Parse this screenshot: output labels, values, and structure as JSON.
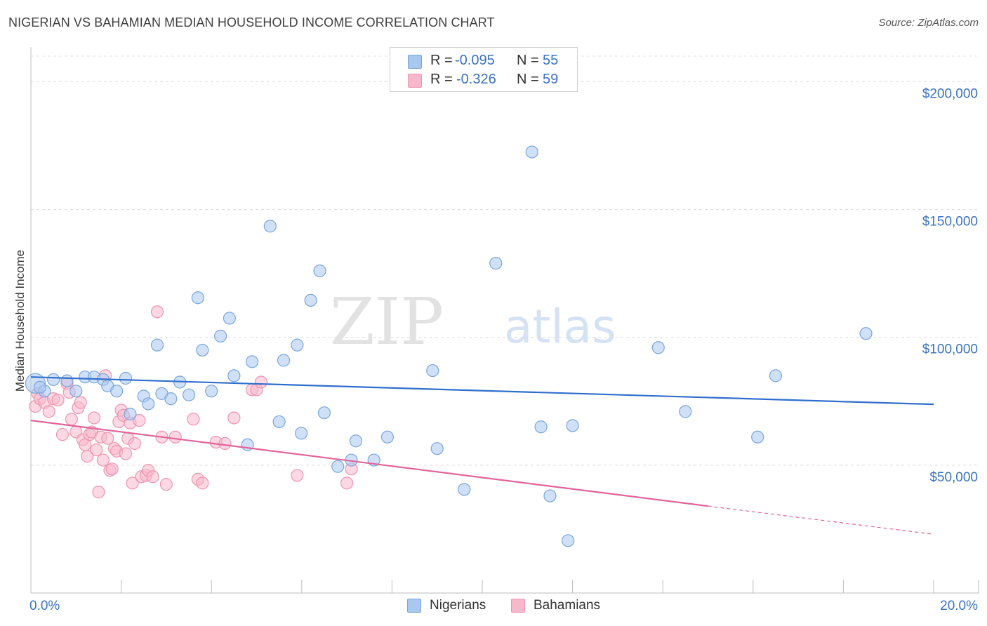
{
  "header": {
    "title": "NIGERIAN VS BAHAMIAN MEDIAN HOUSEHOLD INCOME CORRELATION CHART",
    "source": "Source: ZipAtlas.com"
  },
  "watermark": {
    "zip": "ZIP",
    "atlas": "atlas"
  },
  "stats_legend": {
    "rows": [
      {
        "r_label": "R =",
        "r_value": "-0.095",
        "n_label": "N =",
        "n_value": "55",
        "color": "#a9c8f0"
      },
      {
        "r_label": "R =",
        "r_value": "-0.326",
        "n_label": "N =",
        "n_value": "59",
        "color": "#f8b8cc"
      }
    ]
  },
  "bottom_legend": {
    "nigerians": "Nigerians",
    "bahamians": "Bahamians"
  },
  "colors": {
    "nigerian_fill": "#a9c8f0",
    "nigerian_stroke": "#7aa6dc",
    "nigerian_line": "#2f6fcc",
    "bahamian_fill": "#f8b8cc",
    "bahamian_stroke": "#ee95b1",
    "bahamian_line": "#e2649a",
    "axis_label": "#3a72c4"
  },
  "chart_data": {
    "type": "scatter",
    "title": "NIGERIAN VS BAHAMIAN MEDIAN HOUSEHOLD INCOME CORRELATION CHART",
    "xlabel": "",
    "ylabel": "Median Household Income",
    "xlim": [
      0,
      20
    ],
    "ylim": [
      0,
      210000
    ],
    "x_tick_labels": [
      "0.0%",
      "20.0%"
    ],
    "y_ticks": [
      50000,
      100000,
      150000,
      200000
    ],
    "y_tick_labels": [
      "$50,000",
      "$100,000",
      "$150,000",
      "$200,000"
    ],
    "grid": "horizontal dashed",
    "legend_position": "top-center",
    "series": [
      {
        "name": "Nigerians",
        "r": -0.095,
        "n": 55,
        "trend": {
          "x": [
            0,
            20
          ],
          "y": [
            84500,
            73800
          ]
        },
        "points": [
          [
            0.1,
            82000
          ],
          [
            0.3,
            79000
          ],
          [
            0.5,
            83500
          ],
          [
            0.8,
            83000
          ],
          [
            1.0,
            79000
          ],
          [
            1.2,
            84500
          ],
          [
            1.4,
            84500
          ],
          [
            1.6,
            83500
          ],
          [
            1.7,
            81000
          ],
          [
            1.9,
            79000
          ],
          [
            2.1,
            84000
          ],
          [
            2.2,
            70000
          ],
          [
            2.5,
            77000
          ],
          [
            2.6,
            74000
          ],
          [
            2.8,
            97000
          ],
          [
            2.9,
            78000
          ],
          [
            3.1,
            76000
          ],
          [
            3.3,
            82500
          ],
          [
            3.5,
            77500
          ],
          [
            3.7,
            115500
          ],
          [
            3.8,
            95000
          ],
          [
            4.0,
            79000
          ],
          [
            4.2,
            100500
          ],
          [
            4.4,
            107500
          ],
          [
            4.5,
            85000
          ],
          [
            4.8,
            58000
          ],
          [
            4.9,
            90500
          ],
          [
            5.3,
            143500
          ],
          [
            5.5,
            67000
          ],
          [
            5.6,
            91000
          ],
          [
            5.9,
            97000
          ],
          [
            5.99,
            62500
          ],
          [
            6.2,
            114500
          ],
          [
            6.4,
            126000
          ],
          [
            6.5,
            70500
          ],
          [
            6.8,
            49500
          ],
          [
            7.1,
            52000
          ],
          [
            7.2,
            59500
          ],
          [
            7.6,
            52000
          ],
          [
            7.9,
            61000
          ],
          [
            8.9,
            87000
          ],
          [
            9.0,
            56500
          ],
          [
            9.6,
            40500
          ],
          [
            10.3,
            129000
          ],
          [
            11.1,
            172500
          ],
          [
            11.3,
            65000
          ],
          [
            11.5,
            38000
          ],
          [
            11.9,
            20500
          ],
          [
            12.0,
            65500
          ],
          [
            13.9,
            96000
          ],
          [
            14.5,
            71000
          ],
          [
            16.1,
            61000
          ],
          [
            16.5,
            85000
          ],
          [
            18.5,
            101500
          ],
          [
            0.2,
            80500
          ]
        ]
      },
      {
        "name": "Bahamians",
        "r": -0.326,
        "n": 59,
        "trend": {
          "x": [
            0,
            15
          ],
          "y": [
            67500,
            34000
          ]
        },
        "trend_dashed": {
          "x": [
            15,
            20
          ],
          "y": [
            34000,
            23000
          ]
        },
        "points": [
          [
            0.1,
            73000
          ],
          [
            0.15,
            78000
          ],
          [
            0.2,
            76000
          ],
          [
            0.3,
            74500
          ],
          [
            0.4,
            71000
          ],
          [
            0.5,
            76000
          ],
          [
            0.6,
            75500
          ],
          [
            0.7,
            62000
          ],
          [
            0.8,
            82000
          ],
          [
            0.85,
            78500
          ],
          [
            0.9,
            68000
          ],
          [
            1.0,
            63000
          ],
          [
            1.05,
            72500
          ],
          [
            1.1,
            74500
          ],
          [
            1.15,
            60000
          ],
          [
            1.2,
            58000
          ],
          [
            1.25,
            53500
          ],
          [
            1.3,
            62000
          ],
          [
            1.35,
            63000
          ],
          [
            1.4,
            68500
          ],
          [
            1.45,
            56000
          ],
          [
            1.5,
            39500
          ],
          [
            1.55,
            61000
          ],
          [
            1.6,
            52000
          ],
          [
            1.65,
            85000
          ],
          [
            1.7,
            60500
          ],
          [
            1.75,
            48000
          ],
          [
            1.8,
            48500
          ],
          [
            1.85,
            56500
          ],
          [
            1.9,
            55500
          ],
          [
            1.95,
            67000
          ],
          [
            2.0,
            71500
          ],
          [
            2.05,
            69500
          ],
          [
            2.1,
            54500
          ],
          [
            2.15,
            60500
          ],
          [
            2.2,
            66500
          ],
          [
            2.25,
            43000
          ],
          [
            2.3,
            58500
          ],
          [
            2.4,
            67500
          ],
          [
            2.45,
            45500
          ],
          [
            2.55,
            46000
          ],
          [
            2.6,
            48000
          ],
          [
            2.7,
            45500
          ],
          [
            2.8,
            110000
          ],
          [
            2.9,
            61000
          ],
          [
            3.0,
            42500
          ],
          [
            3.2,
            61000
          ],
          [
            3.6,
            68000
          ],
          [
            3.7,
            44500
          ],
          [
            3.8,
            43000
          ],
          [
            4.1,
            59000
          ],
          [
            4.3,
            58500
          ],
          [
            4.5,
            68500
          ],
          [
            4.9,
            79500
          ],
          [
            5.0,
            79500
          ],
          [
            5.1,
            82500
          ],
          [
            5.9,
            46000
          ],
          [
            7.0,
            43000
          ],
          [
            7.1,
            48500
          ]
        ]
      }
    ]
  }
}
